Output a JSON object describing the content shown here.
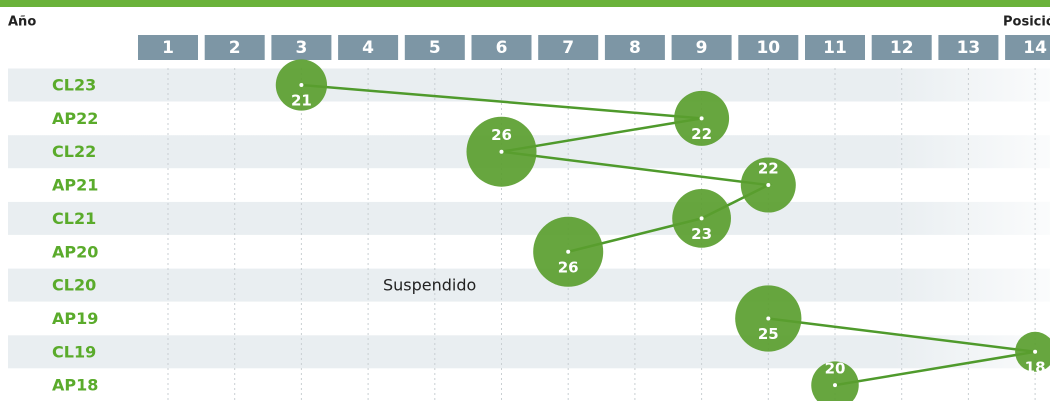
{
  "chart_data": {
    "type": "bubble",
    "x_label": "Posición",
    "y_label": "Año",
    "categories": [
      "CL23",
      "AP22",
      "CL22",
      "AP21",
      "CL21",
      "AP20",
      "CL20",
      "AP19",
      "CL19",
      "AP18"
    ],
    "values": [
      3,
      9,
      6,
      10,
      9,
      7,
      null,
      10,
      14,
      11
    ],
    "sizes": [
      21,
      22,
      26,
      22,
      23,
      26,
      null,
      25,
      18,
      20
    ],
    "annotations": [
      {
        "category": "CL20",
        "text": "Suspendido"
      }
    ],
    "xlim": [
      0.5,
      14.5
    ],
    "xticks": [
      1,
      2,
      3,
      4,
      5,
      6,
      7,
      8,
      9,
      10,
      11,
      12,
      13,
      14
    ],
    "color": "#5a9e2f",
    "line_color": "#4f9a2c",
    "label_color": "#5aab2b",
    "grid": true
  }
}
